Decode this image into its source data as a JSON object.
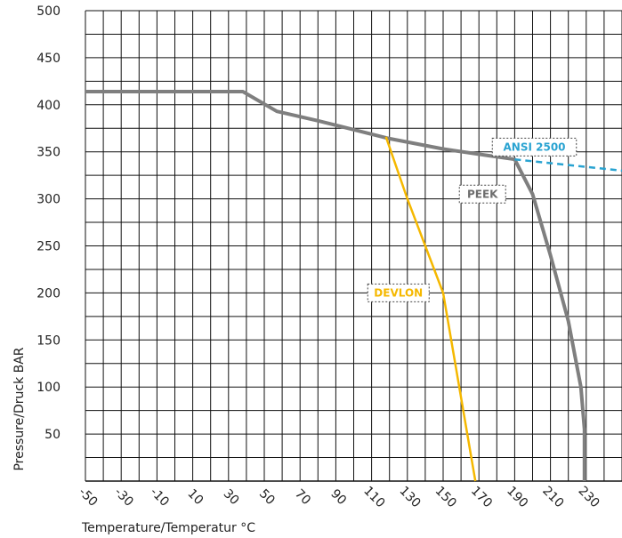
{
  "chart_data": {
    "type": "line",
    "xlabel": "Temperature/Temperatur °C",
    "ylabel": "Pressure/Druck BAR",
    "x_ticks": [
      -50,
      -30,
      -10,
      10,
      30,
      50,
      70,
      90,
      110,
      130,
      150,
      170,
      190,
      210,
      230
    ],
    "y_ticks": [
      50,
      100,
      150,
      200,
      250,
      300,
      350,
      400,
      450,
      500
    ],
    "xlim": [
      -50,
      250
    ],
    "ylim": [
      0,
      500
    ],
    "grid": true,
    "series": [
      {
        "name": "PEEK",
        "color": "#7f7f7f",
        "style": "solid",
        "points": [
          [
            -50,
            414
          ],
          [
            38,
            414
          ],
          [
            57,
            393
          ],
          [
            80,
            383
          ],
          [
            120,
            364
          ],
          [
            150,
            353
          ],
          [
            175,
            346
          ],
          [
            190,
            342
          ],
          [
            200,
            305
          ],
          [
            210,
            240
          ],
          [
            220,
            170
          ],
          [
            227,
            100
          ],
          [
            229,
            55
          ],
          [
            229,
            0
          ]
        ]
      },
      {
        "name": "DEVLON",
        "color": "#f5b800",
        "style": "solid",
        "points": [
          [
            118,
            366
          ],
          [
            130,
            300
          ],
          [
            140,
            250
          ],
          [
            150,
            200
          ],
          [
            168,
            0
          ]
        ]
      },
      {
        "name": "ANSI 2500",
        "color": "#29a3d1",
        "style": "dashed",
        "points": [
          [
            190,
            342
          ],
          [
            250,
            330
          ]
        ]
      }
    ],
    "labels": [
      {
        "text": "ANSI 2500",
        "color": "#29a3d1",
        "x": 201,
        "y": 355
      },
      {
        "text": "PEEK",
        "color": "#6d6d6d",
        "x": 172,
        "y": 305
      },
      {
        "text": "DEVLON",
        "color": "#f5b800",
        "x": 125,
        "y": 200
      }
    ]
  }
}
